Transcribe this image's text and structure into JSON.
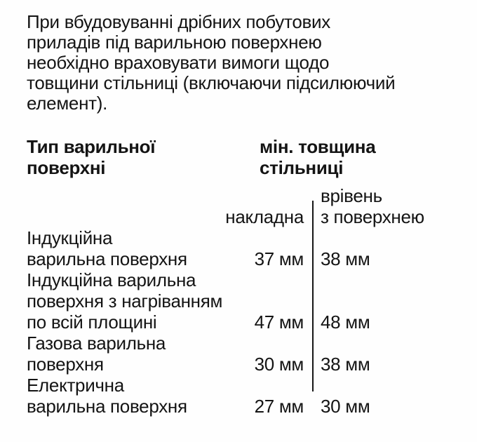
{
  "page": {
    "intro_paragraph": "При вбудовуванні дрібних побутових\nприладів під варильною поверхнею\nнеобхідно враховувати вимоги щодо\nтовщини стільниці (включаючи підсилюючий\nелемент)."
  },
  "table": {
    "col_headers": {
      "type": "Тип варильної\nповерхні",
      "min_thickness": "мін. товщина\nстільниці"
    },
    "sub_headers": {
      "surface_mounted": "накладна",
      "flush_mounted": "врівень\nз поверхнею"
    },
    "rows": [
      {
        "label": "Індукційна\nварильна поверхня",
        "surface_mounted": "37 мм",
        "flush_mounted": "38 мм"
      },
      {
        "label": "Індукційна варильна\nповерхня з нагріванням\nпо всій площині",
        "surface_mounted": "47 мм",
        "flush_mounted": "48 мм"
      },
      {
        "label": "Газова варильна\nповерхня",
        "surface_mounted": "30 мм",
        "flush_mounted": "38 мм"
      },
      {
        "label": "Електрична\nварильна поверхня",
        "surface_mounted": "27 мм",
        "flush_mounted": "30 мм"
      }
    ]
  },
  "colors": {
    "background": "#fefefe",
    "text": "#141414",
    "divider": "#161616"
  }
}
